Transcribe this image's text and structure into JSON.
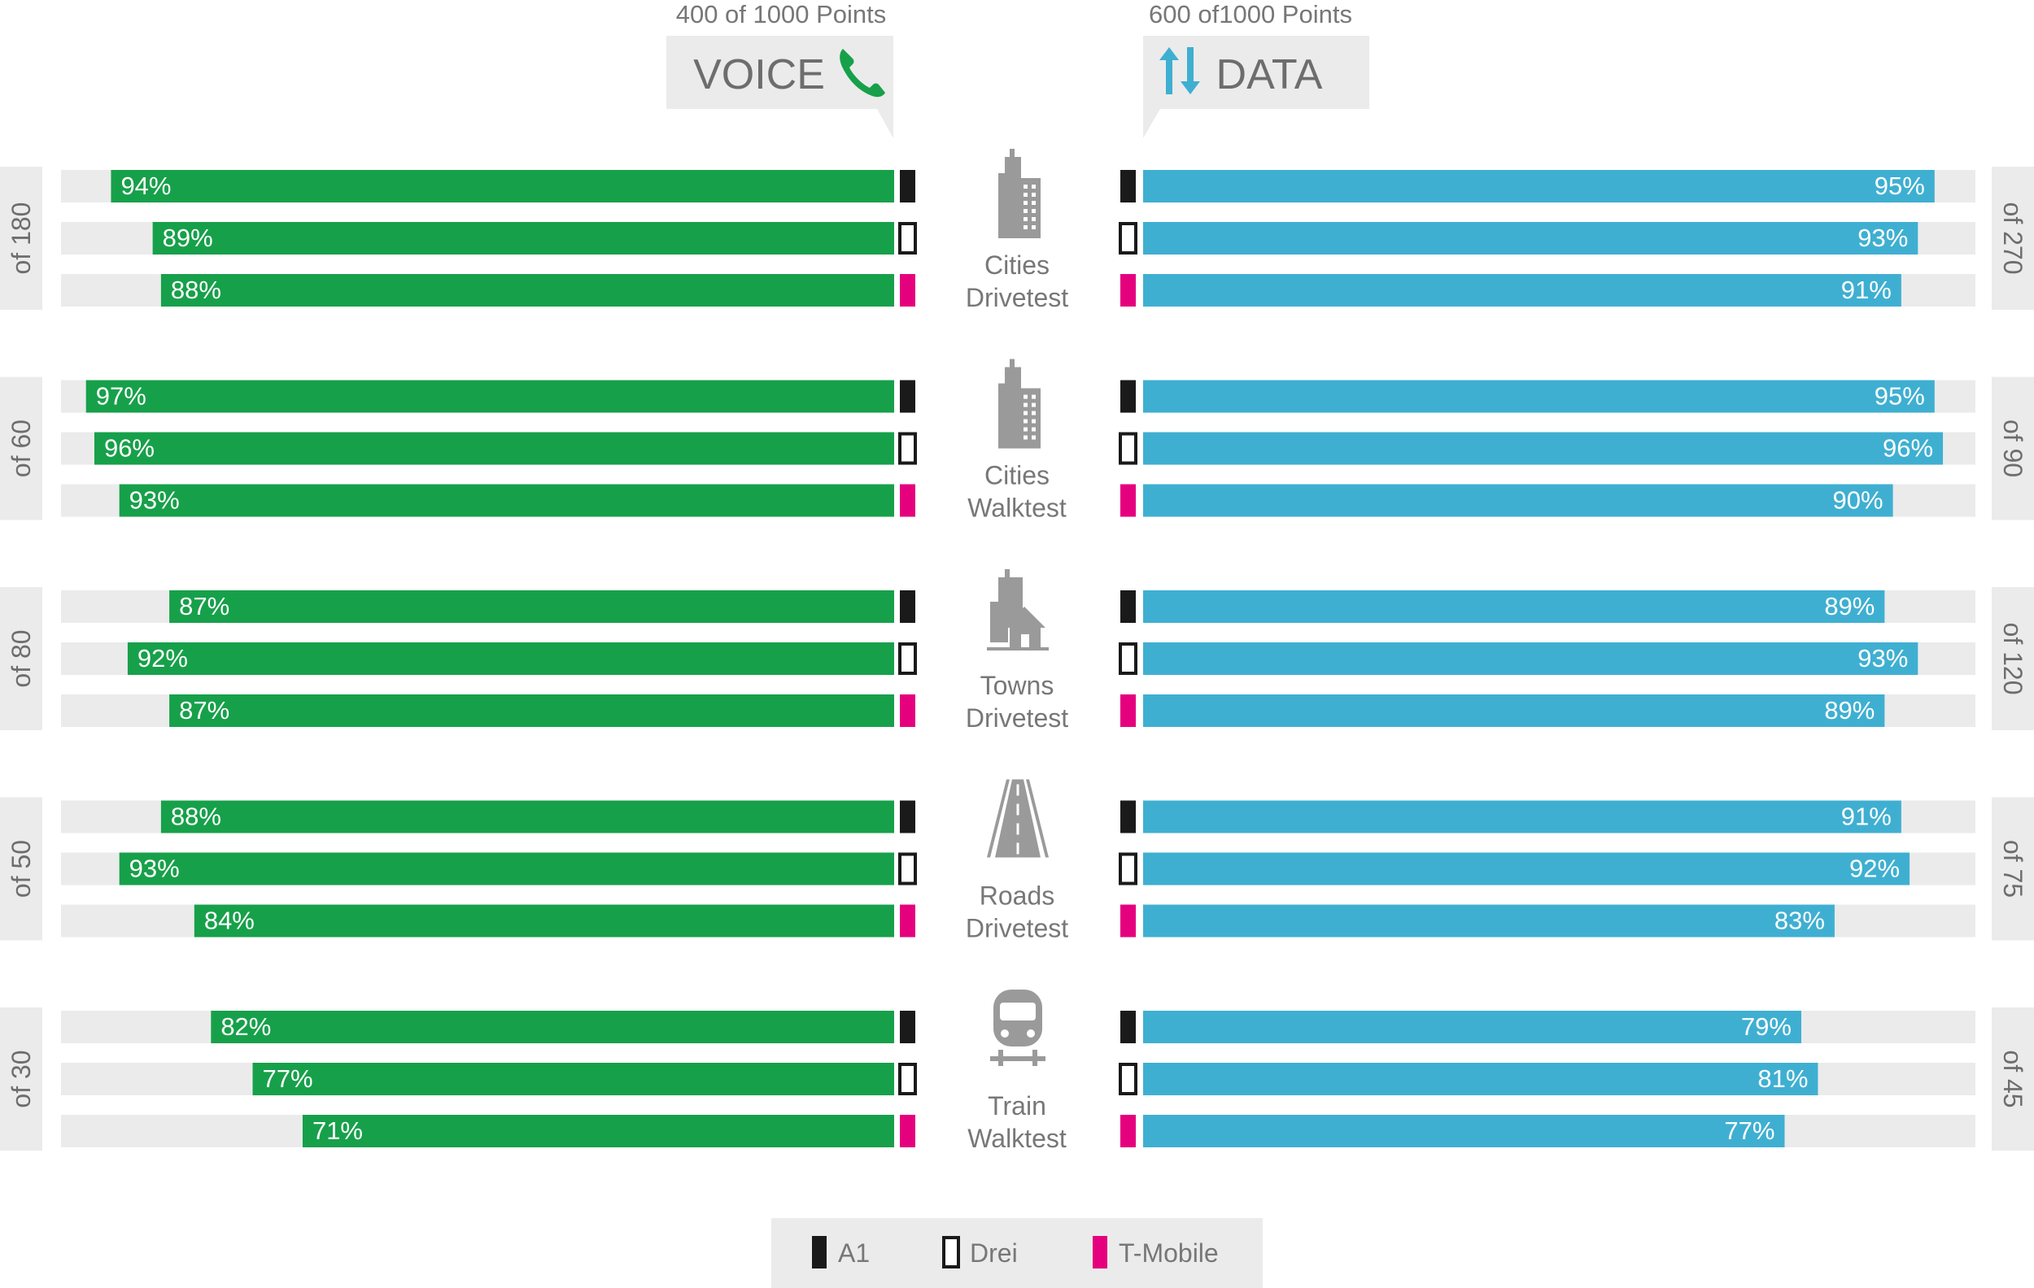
{
  "colors": {
    "voice_bar": "#17a04a",
    "data_bar": "#3fafd1",
    "track": "#ebebeb",
    "label_box": "#ebebeb",
    "text_gray": "#777777",
    "a1": "#1a1a1a",
    "drei": "#ffffff",
    "tmobile": "#e5007e"
  },
  "header": {
    "voice_points": "400 of 1000 Points",
    "voice_title": "VOICE",
    "voice_icon": "phone-icon",
    "data_points": "600 of1000 Points",
    "data_title": "DATA",
    "data_icon": "up-down-arrows-icon"
  },
  "chart_data": {
    "type": "bar",
    "unit": "%",
    "xlim": [
      0,
      100
    ],
    "operators": [
      "A1",
      "Drei",
      "T-Mobile"
    ],
    "categories": [
      {
        "label_line1": "Cities",
        "label_line2": "Drivetest",
        "icon": "city-buildings-icon",
        "voice_max": "of 180",
        "data_max": "of 270",
        "voice": [
          94,
          89,
          88
        ],
        "data": [
          95,
          93,
          91
        ]
      },
      {
        "label_line1": "Cities",
        "label_line2": "Walktest",
        "icon": "city-buildings-icon",
        "voice_max": "of 60",
        "data_max": "of 90",
        "voice": [
          97,
          96,
          93
        ],
        "data": [
          95,
          96,
          90
        ]
      },
      {
        "label_line1": "Towns",
        "label_line2": "Drivetest",
        "icon": "town-houses-icon",
        "voice_max": "of 80",
        "data_max": "of 120",
        "voice": [
          87,
          92,
          87
        ],
        "data": [
          89,
          93,
          89
        ]
      },
      {
        "label_line1": "Roads",
        "label_line2": "Drivetest",
        "icon": "road-icon",
        "voice_max": "of 50",
        "data_max": "of 75",
        "voice": [
          88,
          93,
          84
        ],
        "data": [
          91,
          92,
          83
        ]
      },
      {
        "label_line1": "Train",
        "label_line2": "Walktest",
        "icon": "train-icon",
        "voice_max": "of 30",
        "data_max": "of 45",
        "voice": [
          82,
          77,
          71
        ],
        "data": [
          79,
          81,
          77
        ]
      }
    ]
  },
  "legend": {
    "items": [
      {
        "label": "A1",
        "key": "a1"
      },
      {
        "label": "Drei",
        "key": "drei"
      },
      {
        "label": "T-Mobile",
        "key": "tmobile"
      }
    ]
  }
}
